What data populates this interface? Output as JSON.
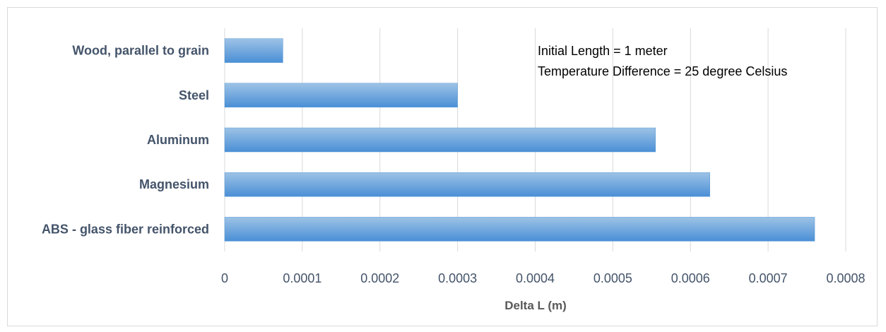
{
  "chart_data": {
    "type": "bar",
    "orientation": "horizontal",
    "categories": [
      "Wood, parallel to grain",
      "Steel",
      "Aluminum",
      "Magnesium",
      "ABS - glass fiber reinforced"
    ],
    "values": [
      7.5e-05,
      0.0003,
      0.000555,
      0.000625,
      0.00076
    ],
    "xlabel": "Delta L (m)",
    "ylabel": "",
    "xlim": [
      0,
      0.0008
    ],
    "ticks": [
      "0",
      "0.0001",
      "0.0002",
      "0.0003",
      "0.0004",
      "0.0005",
      "0.0006",
      "0.0007",
      "0.0008"
    ],
    "grid": true,
    "legend": "none",
    "annotations": [
      "Initial Length = 1 meter",
      "Temperature Difference = 25 degree Celsius"
    ],
    "colors": {
      "bar_top": "#9dc3e6",
      "bar_bottom": "#4a8fd6",
      "bar_stroke": "#5b9bd5"
    }
  }
}
